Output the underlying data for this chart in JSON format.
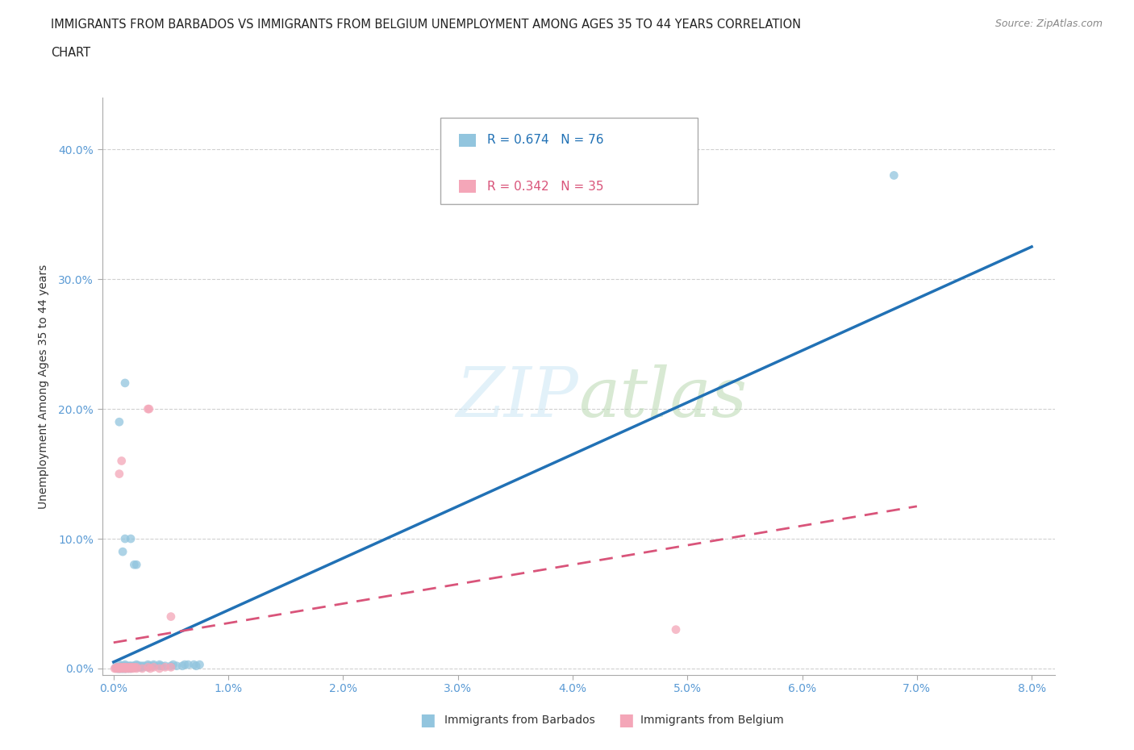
{
  "title_line1": "IMMIGRANTS FROM BARBADOS VS IMMIGRANTS FROM BELGIUM UNEMPLOYMENT AMONG AGES 35 TO 44 YEARS CORRELATION",
  "title_line2": "CHART",
  "source": "Source: ZipAtlas.com",
  "ylabel": "Unemployment Among Ages 35 to 44 years",
  "x_ticks": [
    0.0,
    0.01,
    0.02,
    0.03,
    0.04,
    0.05,
    0.06,
    0.07,
    0.08
  ],
  "x_tick_labels": [
    "0.0%",
    "1.0%",
    "2.0%",
    "3.0%",
    "4.0%",
    "5.0%",
    "6.0%",
    "7.0%",
    "8.0%"
  ],
  "y_ticks": [
    0.0,
    0.1,
    0.2,
    0.3,
    0.4
  ],
  "y_tick_labels": [
    "0.0%",
    "10.0%",
    "20.0%",
    "30.0%",
    "40.0%"
  ],
  "xlim": [
    -0.001,
    0.082
  ],
  "ylim": [
    -0.005,
    0.44
  ],
  "barbados_color": "#92c5de",
  "belgium_color": "#f4a6b8",
  "barbados_line_color": "#2171b5",
  "belgium_line_color": "#d9547a",
  "barbados_R": "0.674",
  "barbados_N": "76",
  "belgium_R": "0.342",
  "belgium_N": "35",
  "legend_barbados": "Immigrants from Barbados",
  "legend_belgium": "Immigrants from Belgium",
  "watermark": "ZIPatlas",
  "background_color": "#ffffff",
  "grid_color": "#d0d0d0",
  "barbados_line": [
    0.0,
    0.001,
    0.32
  ],
  "belgium_line": [
    0.0,
    0.001,
    0.2
  ],
  "barbados_scatter": [
    [
      0.0002,
      0.001
    ],
    [
      0.0003,
      0.0
    ],
    [
      0.0004,
      0.0
    ],
    [
      0.0004,
      0.001
    ],
    [
      0.0005,
      0.0
    ],
    [
      0.0005,
      0.001
    ],
    [
      0.0005,
      0.003
    ],
    [
      0.0006,
      0.0
    ],
    [
      0.0006,
      0.001
    ],
    [
      0.0007,
      0.0
    ],
    [
      0.0007,
      0.001
    ],
    [
      0.0007,
      0.002
    ],
    [
      0.0008,
      0.0
    ],
    [
      0.0008,
      0.001
    ],
    [
      0.0008,
      0.002
    ],
    [
      0.0009,
      0.0
    ],
    [
      0.0009,
      0.001
    ],
    [
      0.001,
      0.0
    ],
    [
      0.001,
      0.001
    ],
    [
      0.001,
      0.002
    ],
    [
      0.001,
      0.003
    ],
    [
      0.0011,
      0.0
    ],
    [
      0.0011,
      0.001
    ],
    [
      0.0012,
      0.001
    ],
    [
      0.0012,
      0.002
    ],
    [
      0.0013,
      0.0
    ],
    [
      0.0013,
      0.001
    ],
    [
      0.0014,
      0.001
    ],
    [
      0.0014,
      0.002
    ],
    [
      0.0015,
      0.0
    ],
    [
      0.0015,
      0.001
    ],
    [
      0.0015,
      0.002
    ],
    [
      0.0016,
      0.001
    ],
    [
      0.0017,
      0.001
    ],
    [
      0.0017,
      0.002
    ],
    [
      0.0018,
      0.001
    ],
    [
      0.0018,
      0.002
    ],
    [
      0.0019,
      0.001
    ],
    [
      0.002,
      0.001
    ],
    [
      0.002,
      0.002
    ],
    [
      0.002,
      0.003
    ],
    [
      0.0021,
      0.002
    ],
    [
      0.0022,
      0.001
    ],
    [
      0.0022,
      0.002
    ],
    [
      0.0023,
      0.001
    ],
    [
      0.0023,
      0.002
    ],
    [
      0.0025,
      0.001
    ],
    [
      0.0025,
      0.002
    ],
    [
      0.0027,
      0.002
    ],
    [
      0.003,
      0.001
    ],
    [
      0.003,
      0.002
    ],
    [
      0.003,
      0.003
    ],
    [
      0.0032,
      0.002
    ],
    [
      0.0035,
      0.002
    ],
    [
      0.0035,
      0.003
    ],
    [
      0.004,
      0.002
    ],
    [
      0.004,
      0.003
    ],
    [
      0.0042,
      0.002
    ],
    [
      0.0045,
      0.002
    ],
    [
      0.005,
      0.002
    ],
    [
      0.0052,
      0.003
    ],
    [
      0.0055,
      0.002
    ],
    [
      0.006,
      0.002
    ],
    [
      0.0062,
      0.003
    ],
    [
      0.0065,
      0.003
    ],
    [
      0.007,
      0.003
    ],
    [
      0.0072,
      0.002
    ],
    [
      0.0075,
      0.003
    ],
    [
      0.0005,
      0.19
    ],
    [
      0.001,
      0.22
    ],
    [
      0.0008,
      0.09
    ],
    [
      0.001,
      0.1
    ],
    [
      0.0015,
      0.1
    ],
    [
      0.002,
      0.08
    ],
    [
      0.0018,
      0.08
    ],
    [
      0.068,
      0.38
    ]
  ],
  "belgium_scatter": [
    [
      0.0002,
      0.0
    ],
    [
      0.0003,
      0.001
    ],
    [
      0.0004,
      0.0
    ],
    [
      0.0005,
      0.001
    ],
    [
      0.0005,
      0.0
    ],
    [
      0.0006,
      0.0
    ],
    [
      0.0007,
      0.001
    ],
    [
      0.0008,
      0.0
    ],
    [
      0.0009,
      0.001
    ],
    [
      0.001,
      0.0
    ],
    [
      0.001,
      0.001
    ],
    [
      0.0011,
      0.0
    ],
    [
      0.0012,
      0.001
    ],
    [
      0.0013,
      0.0
    ],
    [
      0.0014,
      0.001
    ],
    [
      0.0015,
      0.0
    ],
    [
      0.0016,
      0.001
    ],
    [
      0.0017,
      0.0
    ],
    [
      0.0018,
      0.001
    ],
    [
      0.002,
      0.0
    ],
    [
      0.0005,
      0.15
    ],
    [
      0.0007,
      0.16
    ],
    [
      0.003,
      0.2
    ],
    [
      0.0031,
      0.2
    ],
    [
      0.002,
      0.001
    ],
    [
      0.0025,
      0.0
    ],
    [
      0.003,
      0.001
    ],
    [
      0.0032,
      0.0
    ],
    [
      0.0035,
      0.001
    ],
    [
      0.004,
      0.0
    ],
    [
      0.0045,
      0.001
    ],
    [
      0.005,
      0.04
    ],
    [
      0.005,
      0.001
    ],
    [
      0.049,
      0.03
    ],
    [
      0.0001,
      0.0
    ]
  ]
}
